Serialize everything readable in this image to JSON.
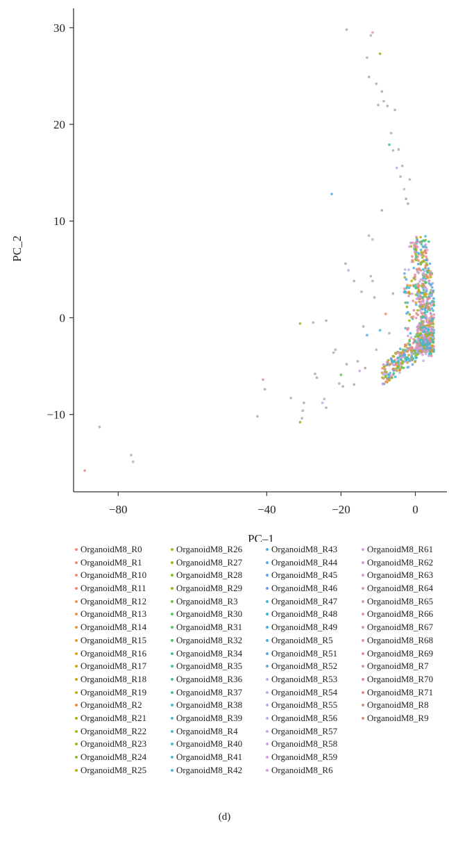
{
  "chart_data": {
    "type": "scatter",
    "title": "",
    "xlabel": "PC–1",
    "ylabel": "PC_2",
    "xlim": [
      -92,
      8.5
    ],
    "ylim": [
      -18,
      32
    ],
    "x_ticks": [
      -80,
      -40,
      -20,
      0
    ],
    "y_ticks": [
      30,
      20,
      10,
      0,
      -10
    ],
    "x_tick_labels": [
      "−80",
      "−40",
      "−20",
      "0"
    ],
    "y_tick_labels": [
      "30",
      "20",
      "10",
      "0",
      "−10"
    ],
    "legend_placement": "bottom",
    "grid": false,
    "series": [
      {
        "name": "OrganoidM8_R0",
        "color": "#f08a82"
      },
      {
        "name": "OrganoidM8_R1",
        "color": "#ef8a7b"
      },
      {
        "name": "OrganoidM8_R10",
        "color": "#ec8b70"
      },
      {
        "name": "OrganoidM8_R11",
        "color": "#ea8e63"
      },
      {
        "name": "OrganoidM8_R12",
        "color": "#e69256"
      },
      {
        "name": "OrganoidM8_R13",
        "color": "#e29649"
      },
      {
        "name": "OrganoidM8_R14",
        "color": "#de9a3b"
      },
      {
        "name": "OrganoidM8_R15",
        "color": "#d99f2e"
      },
      {
        "name": "OrganoidM8_R16",
        "color": "#d3a322"
      },
      {
        "name": "OrganoidM8_R17",
        "color": "#cca718"
      },
      {
        "name": "OrganoidM8_R18",
        "color": "#c5ab12"
      },
      {
        "name": "OrganoidM8_R19",
        "color": "#bdae11"
      },
      {
        "name": "OrganoidM8_R2",
        "color": "#e88a3a"
      },
      {
        "name": "OrganoidM8_R21",
        "color": "#b1b217"
      },
      {
        "name": "OrganoidM8_R22",
        "color": "#a6b51e"
      },
      {
        "name": "OrganoidM8_R23",
        "color": "#9bb726"
      },
      {
        "name": "OrganoidM8_R24",
        "color": "#8fba2f"
      },
      {
        "name": "OrganoidM8_R25",
        "color": "#b4b00f"
      },
      {
        "name": "OrganoidM8_R26",
        "color": "#a4b513"
      },
      {
        "name": "OrganoidM8_R27",
        "color": "#93b918"
      },
      {
        "name": "OrganoidM8_R28",
        "color": "#84bc1f"
      },
      {
        "name": "OrganoidM8_R29",
        "color": "#a9ad0e"
      },
      {
        "name": "OrganoidM8_R3",
        "color": "#6cc04a"
      },
      {
        "name": "OrganoidM8_R30",
        "color": "#5fc25a"
      },
      {
        "name": "OrganoidM8_R31",
        "color": "#54c369"
      },
      {
        "name": "OrganoidM8_R32",
        "color": "#4cc478"
      },
      {
        "name": "OrganoidM8_R34",
        "color": "#45c486"
      },
      {
        "name": "OrganoidM8_R35",
        "color": "#41c494"
      },
      {
        "name": "OrganoidM8_R36",
        "color": "#3fc3a1"
      },
      {
        "name": "OrganoidM8_R37",
        "color": "#3fc2ad"
      },
      {
        "name": "OrganoidM8_R38",
        "color": "#40c0b8"
      },
      {
        "name": "OrganoidM8_R39",
        "color": "#42bec3"
      },
      {
        "name": "OrganoidM8_R4",
        "color": "#45bbcc"
      },
      {
        "name": "OrganoidM8_R40",
        "color": "#48b8d5"
      },
      {
        "name": "OrganoidM8_R41",
        "color": "#4cb5dc"
      },
      {
        "name": "OrganoidM8_R42",
        "color": "#50b2e2"
      },
      {
        "name": "OrganoidM8_R43",
        "color": "#55aee7"
      },
      {
        "name": "OrganoidM8_R44",
        "color": "#59aaeb"
      },
      {
        "name": "OrganoidM8_R45",
        "color": "#5ea6ee"
      },
      {
        "name": "OrganoidM8_R46",
        "color": "#62a2f0"
      },
      {
        "name": "OrganoidM8_R47",
        "color": "#3fb6d6"
      },
      {
        "name": "OrganoidM8_R48",
        "color": "#3fb3da"
      },
      {
        "name": "OrganoidM8_R49",
        "color": "#42b0de"
      },
      {
        "name": "OrganoidM8_R5",
        "color": "#4aaee0"
      },
      {
        "name": "OrganoidM8_R51",
        "color": "#55acdf"
      },
      {
        "name": "OrganoidM8_R52",
        "color": "#65aadd"
      },
      {
        "name": "OrganoidM8_R53",
        "color": "#b8b3df"
      },
      {
        "name": "OrganoidM8_R54",
        "color": "#bdb0e1"
      },
      {
        "name": "OrganoidM8_R55",
        "color": "#c1ade2"
      },
      {
        "name": "OrganoidM8_R56",
        "color": "#c6abe3"
      },
      {
        "name": "OrganoidM8_R57",
        "color": "#caa8e2"
      },
      {
        "name": "OrganoidM8_R58",
        "color": "#cea5e1"
      },
      {
        "name": "OrganoidM8_R59",
        "color": "#d2a2df"
      },
      {
        "name": "OrganoidM8_R6",
        "color": "#d5a0dc"
      },
      {
        "name": "OrganoidM8_R61",
        "color": "#d99dd8"
      },
      {
        "name": "OrganoidM8_R62",
        "color": "#dc9ad3"
      },
      {
        "name": "OrganoidM8_R63",
        "color": "#de97ce"
      },
      {
        "name": "OrganoidM8_R64",
        "color": "#e095c8"
      },
      {
        "name": "OrganoidM8_R65",
        "color": "#e293c1"
      },
      {
        "name": "OrganoidM8_R66",
        "color": "#e391ba"
      },
      {
        "name": "OrganoidM8_R67",
        "color": "#e48fb2"
      },
      {
        "name": "OrganoidM8_R68",
        "color": "#e48eaa"
      },
      {
        "name": "OrganoidM8_R69",
        "color": "#e48da2"
      },
      {
        "name": "OrganoidM8_R7",
        "color": "#e38c9a"
      },
      {
        "name": "OrganoidM8_R70",
        "color": "#e28b92"
      },
      {
        "name": "OrganoidM8_R71",
        "color": "#e18b8b"
      },
      {
        "name": "OrganoidM8_R8",
        "color": "#df8a84"
      },
      {
        "name": "OrganoidM8_R9",
        "color": "#dd8a7e"
      }
    ],
    "outlier_points": [
      [
        -89,
        -15.8
      ],
      [
        -85,
        -11.3
      ],
      [
        -76.5,
        -14.2
      ],
      [
        -76,
        -14.9
      ],
      [
        -41,
        -6.4
      ],
      [
        -40.5,
        -7.4
      ],
      [
        -42.5,
        -10.2
      ],
      [
        -33.5,
        -8.3
      ],
      [
        -31,
        -10.8
      ],
      [
        -30.5,
        -10.4
      ],
      [
        -30.3,
        -9.6
      ],
      [
        -30,
        -8.8
      ],
      [
        -31,
        -0.6
      ],
      [
        -27.5,
        -0.5
      ],
      [
        -27,
        -5.8
      ],
      [
        -26.5,
        -6.2
      ],
      [
        -25,
        -8.8
      ],
      [
        -24.5,
        -8.4
      ],
      [
        -24,
        -9.3
      ],
      [
        -24,
        -0.3
      ],
      [
        -22.5,
        12.8
      ],
      [
        -22,
        -3.6
      ],
      [
        -21.5,
        -3.3
      ],
      [
        -20.5,
        -6.8
      ],
      [
        -20,
        -5.9
      ],
      [
        -19.5,
        -7.1
      ],
      [
        -18.8,
        5.6
      ],
      [
        -18.5,
        -4.8
      ],
      [
        -18,
        4.9
      ],
      [
        -16.5,
        3.8
      ],
      [
        -16.5,
        -6.9
      ],
      [
        -15.5,
        -4.5
      ],
      [
        -15,
        -5.5
      ],
      [
        -14.5,
        2.7
      ],
      [
        -14,
        -0.9
      ],
      [
        -13.5,
        -5.2
      ],
      [
        -13,
        -1.8
      ],
      [
        -12.5,
        8.5
      ],
      [
        -12,
        4.3
      ],
      [
        -11.5,
        3.8
      ],
      [
        -11.5,
        8.1
      ],
      [
        -11,
        2.1
      ],
      [
        -10.5,
        -3.3
      ],
      [
        -10,
        22
      ],
      [
        -9.5,
        -1.3
      ],
      [
        -9,
        11.1
      ],
      [
        -18.5,
        29.8
      ],
      [
        -12,
        29.2
      ],
      [
        -11.5,
        29.5
      ],
      [
        -13,
        26.9
      ],
      [
        -12.5,
        24.9
      ],
      [
        -10.5,
        24.2
      ],
      [
        -9.5,
        27.3
      ],
      [
        -9,
        23.4
      ],
      [
        -8.5,
        22.4
      ],
      [
        -7.5,
        21.9
      ],
      [
        -7,
        17.9
      ],
      [
        -6.5,
        19.1
      ],
      [
        -6,
        17.3
      ],
      [
        -5.5,
        21.5
      ],
      [
        -5,
        15.5
      ],
      [
        -4.5,
        17.4
      ],
      [
        -4,
        14.6
      ],
      [
        -3.5,
        15.7
      ],
      [
        -3,
        13.3
      ],
      [
        -2.5,
        12.3
      ],
      [
        -2,
        11.8
      ],
      [
        -1.5,
        14.3
      ],
      [
        -8,
        0.4
      ],
      [
        -7,
        -1.6
      ],
      [
        -6,
        2.5
      ],
      [
        -6.5,
        -4.2
      ]
    ],
    "cluster_center": [
      2.5,
      -0.5
    ],
    "cluster_point_count": 900
  },
  "caption": "(d)"
}
